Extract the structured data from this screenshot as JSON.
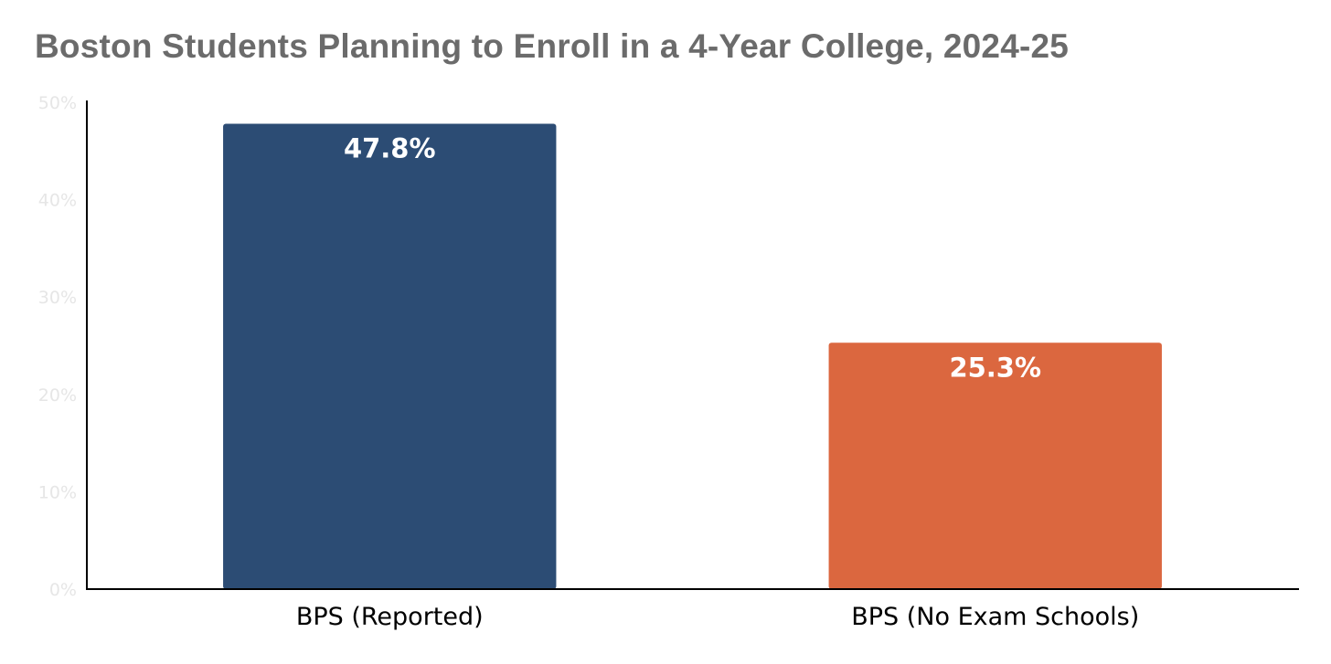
{
  "chart_data": {
    "type": "bar",
    "title": "Boston Students Planning to Enroll in a 4-Year College, 2024-25",
    "xlabel": "",
    "ylabel": "",
    "categories": [
      "BPS (Reported)",
      "BPS (No Exam Schools)"
    ],
    "values": [
      47.8,
      25.3
    ],
    "data_labels": [
      "47.8%",
      "25.3%"
    ],
    "colors": [
      "#2c4c74",
      "#db673f"
    ],
    "ylim": [
      0,
      50
    ],
    "yticks": [
      0,
      10,
      20,
      30,
      40,
      50
    ],
    "ytick_labels": [
      "0%",
      "10%",
      "20%",
      "30%",
      "40%",
      "50%"
    ],
    "grid": false,
    "legend": "none"
  }
}
